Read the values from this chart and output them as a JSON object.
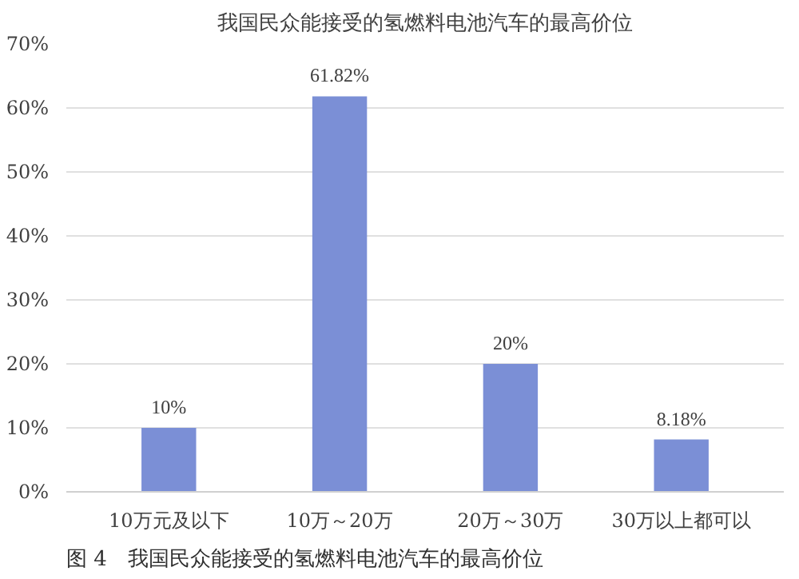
{
  "chart_data": {
    "type": "bar",
    "title": "我国民众能接受的氢燃料电池汽车的最高价位",
    "categories": [
      "10万元及以下",
      "10万～20万",
      "20万～30万",
      "30万以上都可以"
    ],
    "values": [
      10,
      61.82,
      20,
      8.18
    ],
    "value_labels": [
      "10%",
      "61.82%",
      "20%",
      "8.18%"
    ],
    "color": "#7b8fd6",
    "ylim": [
      0,
      70
    ],
    "yticks": [
      {
        "value": 0,
        "label": "0%"
      },
      {
        "value": 10,
        "label": "10%"
      },
      {
        "value": 20,
        "label": "20%"
      },
      {
        "value": 30,
        "label": "30%"
      },
      {
        "value": 40,
        "label": "40%"
      },
      {
        "value": 50,
        "label": "50%"
      },
      {
        "value": 60,
        "label": "60%"
      },
      {
        "value": 70,
        "label": "70%"
      }
    ],
    "grid": "y",
    "annotations": [
      "图 4　我国民众能接受的氢燃料电池汽车的最高价位"
    ]
  }
}
